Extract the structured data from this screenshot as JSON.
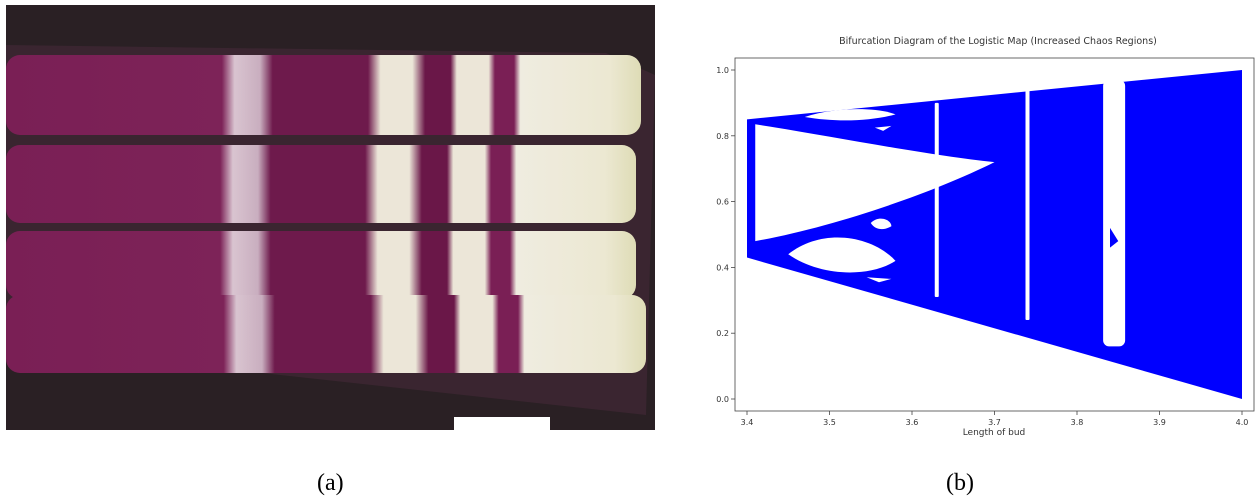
{
  "figure": {
    "caption_a": "(a)",
    "caption_b": "(b)"
  },
  "photo": {
    "subject": "four stained tissue strips with alternating purple and white bands",
    "colors": {
      "background": "#2a2024",
      "purple": "#7a1f55",
      "purple_dark": "#5e1240",
      "white_band": "#ece6d8",
      "tip": "#e4e3c2",
      "scale_bar": "#ffffff"
    }
  },
  "chart_data": {
    "type": "scatter",
    "title": "Bifurcation Diagram of the Logistic Map (Increased Chaos Regions)",
    "xlabel": "Length of bud",
    "ylabel": "",
    "xlim": [
      3.4,
      4.0
    ],
    "ylim": [
      0.0,
      1.0
    ],
    "x_ticks": [
      "3.4",
      "3.5",
      "3.6",
      "3.7",
      "3.8",
      "3.9",
      "4.0"
    ],
    "y_ticks": [
      "0.0",
      "0.2",
      "0.4",
      "0.6",
      "0.8",
      "1.0"
    ],
    "grid": false,
    "marker_color": "#0000ff",
    "outer_envelope": {
      "x": [
        3.4,
        4.0
      ],
      "upper": [
        0.85,
        1.0
      ],
      "lower": [
        0.43,
        0.0
      ]
    },
    "gaps": [
      {
        "x": 3.63,
        "y_range": [
          0.31,
          0.9
        ]
      },
      {
        "x": 3.74,
        "y_range": [
          0.24,
          0.94
        ]
      },
      {
        "x": 3.845,
        "y_range": [
          0.16,
          0.97
        ]
      }
    ]
  }
}
